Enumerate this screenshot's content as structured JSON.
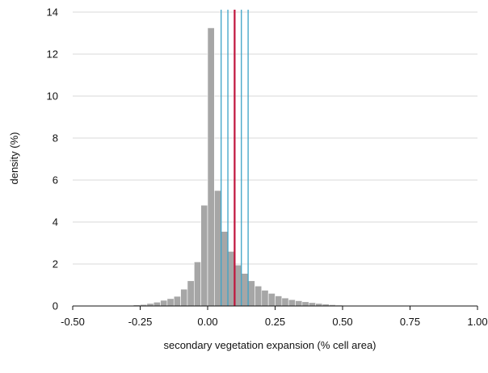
{
  "chart_data": {
    "type": "histogram",
    "xlabel": "secondary vegetation expansion (% cell area)",
    "ylabel": "density (%)",
    "xlim": [
      -0.5,
      1.0
    ],
    "ylim": [
      0,
      14
    ],
    "x_ticks": [
      -0.5,
      -0.25,
      0.0,
      0.25,
      0.5,
      0.75,
      1.0
    ],
    "x_tick_labels": [
      "-0.50",
      "-0.25",
      "0.00",
      "0.25",
      "0.50",
      "0.75",
      "1.00"
    ],
    "y_ticks": [
      0,
      2,
      4,
      6,
      8,
      10,
      12,
      14
    ],
    "y_tick_labels": [
      "0",
      "2",
      "4",
      "6",
      "8",
      "10",
      "12",
      "14"
    ],
    "grid": "horizontal",
    "bin_width": 0.025,
    "bins_start": [
      -0.4,
      -0.375,
      -0.35,
      -0.325,
      -0.3,
      -0.275,
      -0.25,
      -0.225,
      -0.2,
      -0.175,
      -0.15,
      -0.125,
      -0.1,
      -0.075,
      -0.05,
      -0.025,
      0.0,
      0.025,
      0.05,
      0.075,
      0.1,
      0.125,
      0.15,
      0.175,
      0.2,
      0.225,
      0.25,
      0.275,
      0.3,
      0.325,
      0.35,
      0.375,
      0.4,
      0.425,
      0.45,
      0.475,
      0.5,
      0.525,
      0.55,
      0.575
    ],
    "values": [
      0.01,
      0.01,
      0.02,
      0.02,
      0.03,
      0.05,
      0.07,
      0.12,
      0.18,
      0.27,
      0.35,
      0.46,
      0.8,
      1.2,
      2.1,
      4.8,
      13.25,
      5.5,
      3.55,
      2.6,
      1.95,
      1.55,
      1.2,
      0.95,
      0.75,
      0.6,
      0.48,
      0.38,
      0.3,
      0.25,
      0.2,
      0.16,
      0.12,
      0.09,
      0.06,
      0.04,
      0.03,
      0.02,
      0.01,
      0.01
    ],
    "bar_color": "#a6a6a6",
    "vertical_lines": [
      {
        "x": 0.05,
        "color": "#3ba3c7"
      },
      {
        "x": 0.075,
        "color": "#3ba3c7"
      },
      {
        "x": 0.1,
        "color": "#c0143c"
      },
      {
        "x": 0.125,
        "color": "#3ba3c7"
      },
      {
        "x": 0.15,
        "color": "#3ba3c7"
      }
    ]
  }
}
